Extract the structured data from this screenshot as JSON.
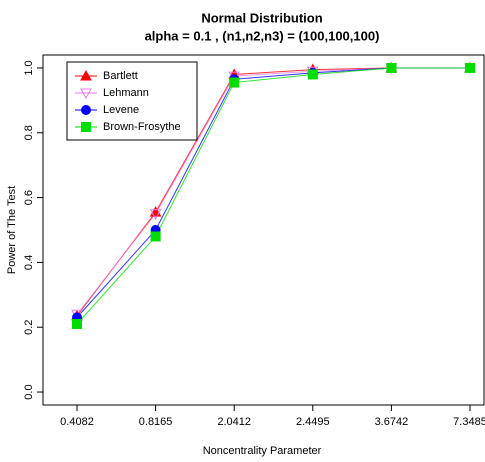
{
  "chart_data": {
    "type": "line",
    "title": "Normal Distribution",
    "subtitle": "alpha = 0.1 , (n1,n2,n3) = (100,100,100)",
    "x_label": "Noncentrality Parameter",
    "y_label": "Power of The Test",
    "categories": [
      "0.4082",
      "0.8165",
      "2.0412",
      "2.4495",
      "3.6742",
      "7.3485"
    ],
    "series": [
      {
        "name": "Bartlett",
        "color": "#ff0000",
        "marker": "triangle",
        "values": [
          0.235,
          0.555,
          0.98,
          0.995,
          1.0,
          1.0
        ]
      },
      {
        "name": "Lehmann",
        "color": "#e07ee8",
        "marker": "triangle-down",
        "values": [
          0.24,
          0.55,
          0.975,
          0.99,
          1.0,
          1.0
        ]
      },
      {
        "name": "Levene",
        "color": "#0000ff",
        "marker": "circle",
        "values": [
          0.23,
          0.5,
          0.965,
          0.985,
          1.0,
          1.0
        ]
      },
      {
        "name": "Brown-Frosythe",
        "color": "#00dd00",
        "marker": "square",
        "values": [
          0.21,
          0.48,
          0.955,
          0.98,
          1.0,
          1.0
        ]
      }
    ],
    "ylim": [
      -0.04,
      1.04
    ],
    "yticks": [
      {
        "value": 0,
        "label": "0.0"
      },
      0.2,
      0.4,
      0.6,
      0.8,
      {
        "value": 1,
        "label": "1.0"
      }
    ],
    "legend": "top-left"
  }
}
